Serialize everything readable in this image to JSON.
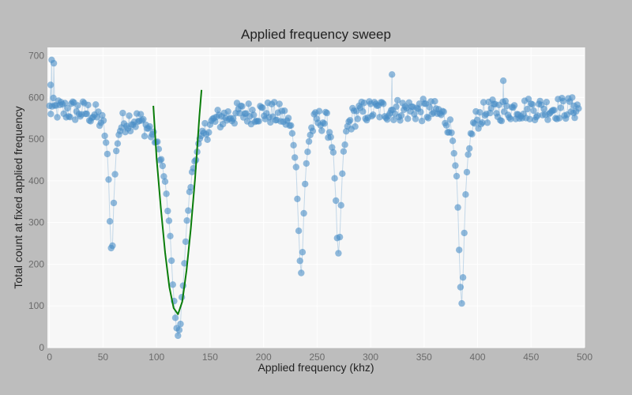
{
  "chart_data": {
    "type": "scatter",
    "title": "Applied frequency sweep",
    "xlabel": "Applied frequency (khz)",
    "ylabel": "Total count at fixed applied frequency",
    "xlim": [
      -2,
      500
    ],
    "ylim": [
      0,
      720
    ],
    "x_ticks": [
      0,
      50,
      100,
      150,
      200,
      250,
      300,
      350,
      400,
      450,
      500
    ],
    "y_ticks": [
      0,
      100,
      200,
      300,
      400,
      500,
      600,
      700
    ],
    "grid": true,
    "legend": "none",
    "colors": {
      "markers": "#4a8ec7",
      "fit_line": "#0a7d0a",
      "plot_bg": "#f7f7f7",
      "page_bg": "#bdbdbd"
    },
    "baseline": 575,
    "noise": 28,
    "dips": [
      {
        "center": 58,
        "width": 2.8,
        "min": 240
      },
      {
        "center": 120,
        "width": 8.5,
        "min": 28
      },
      {
        "center": 235,
        "width": 3.5,
        "min": 185
      },
      {
        "center": 270,
        "width": 3.2,
        "min": 220
      },
      {
        "center": 385,
        "width": 3.5,
        "min": 98
      }
    ],
    "series": [
      {
        "type": "scatter",
        "x_start": 0,
        "x_end": 495,
        "x_step": 1.2,
        "extra_points": [
          [
            2,
            690
          ],
          [
            4,
            682
          ],
          [
            1,
            630
          ],
          [
            320,
            655
          ],
          [
            424,
            640
          ],
          [
            490,
            580
          ]
        ]
      },
      {
        "type": "line",
        "x": [
          97,
          100,
          104,
          108,
          112,
          116,
          120,
          124,
          128,
          132,
          136,
          140,
          142
        ],
        "y": [
          580,
          455,
          335,
          228,
          145,
          95,
          80,
          110,
          185,
          285,
          405,
          555,
          618
        ]
      }
    ]
  }
}
